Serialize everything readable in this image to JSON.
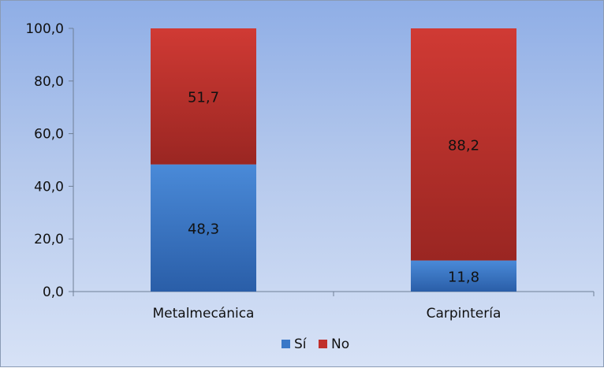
{
  "chart_data": {
    "type": "bar",
    "stacked": true,
    "categories": [
      "Metalmecánica",
      "Carpintería"
    ],
    "series": [
      {
        "name": "Sí",
        "values": [
          48.3,
          11.8
        ],
        "color": "#3a78c8",
        "labels": [
          "48,3",
          "11,8"
        ]
      },
      {
        "name": "No",
        "values": [
          51.7,
          88.2
        ],
        "color": "#c0302c",
        "labels": [
          "51,7",
          "88,2"
        ]
      }
    ],
    "ylim": [
      0,
      100
    ],
    "yticks": [
      0,
      20,
      40,
      60,
      80,
      100
    ],
    "ytick_labels": [
      "0,0",
      "20,0",
      "40,0",
      "60,0",
      "80,0",
      "100,0"
    ],
    "grid": false,
    "legend_position": "bottom",
    "title": "",
    "xlabel": "",
    "ylabel": ""
  }
}
